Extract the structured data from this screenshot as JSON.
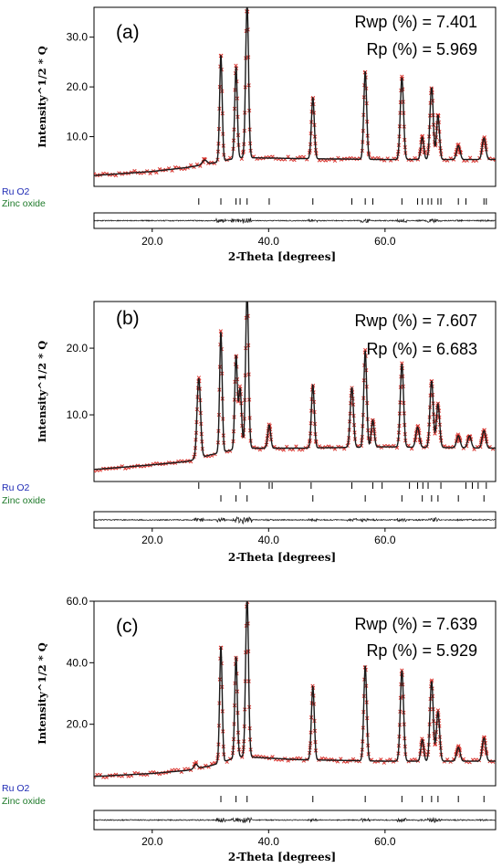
{
  "colors": {
    "background": "#ffffff",
    "observed": "#d8322c",
    "calculated": "#1a1a1a",
    "phase1_label": "#1f2bb5",
    "phase2_label": "#1e7a2a",
    "difference": "#222222"
  },
  "chart_data": [
    {
      "type": "line",
      "panel_label": "(a)",
      "rwp_text": "Rwp (%) = 7.401",
      "rp_text": "Rp  (%) = 5.969",
      "ylabel": "Intensity^1/2 * Q",
      "xlabel": "2-Theta [degrees]",
      "xlim": [
        10,
        79
      ],
      "ylim": [
        0,
        36
      ],
      "xticks": [
        "20.0",
        "40.0",
        "60.0"
      ],
      "yticks": [
        "10.0",
        "20.0",
        "30.0"
      ],
      "background": [
        [
          10,
          2.2
        ],
        [
          20,
          3.0
        ],
        [
          26,
          3.8
        ],
        [
          30,
          4.6
        ],
        [
          35,
          5.8
        ],
        [
          45,
          5.6
        ],
        [
          60,
          5.4
        ],
        [
          79,
          5.4
        ]
      ],
      "peaks": [
        [
          29,
          0.9,
          0.4
        ],
        [
          31.8,
          21.5,
          0.22
        ],
        [
          34.4,
          18.5,
          0.22
        ],
        [
          36.3,
          31,
          0.25
        ],
        [
          47.6,
          12.3,
          0.25
        ],
        [
          56.6,
          17.7,
          0.25
        ],
        [
          62.9,
          16.5,
          0.28
        ],
        [
          66.4,
          4.5,
          0.25
        ],
        [
          68.0,
          14.5,
          0.28
        ],
        [
          69.1,
          9.0,
          0.25
        ],
        [
          72.6,
          2.8,
          0.3
        ],
        [
          77.0,
          4.3,
          0.3
        ]
      ],
      "phases": [
        {
          "name": "Ru O2",
          "positions": [
            28.0,
            35.1,
            40.1,
            54.3,
            57.9,
            65.6,
            67.4,
            69.6,
            73.9,
            77.4
          ]
        },
        {
          "name": "Zinc oxide",
          "positions": [
            31.8,
            34.4,
            36.3,
            47.6,
            56.6,
            62.9,
            66.4,
            68.0,
            69.1,
            72.6,
            77.0
          ]
        }
      ]
    },
    {
      "type": "line",
      "panel_label": "(b)",
      "rwp_text": "Rwp (%) = 7.607",
      "rp_text": "Rp  (%) = 6.683",
      "ylabel": "Intensity^1/2 * Q",
      "xlabel": "2-Theta [degrees]",
      "xlim": [
        10,
        79
      ],
      "ylim": [
        0,
        27
      ],
      "xticks": [
        "20.0",
        "40.0",
        "60.0"
      ],
      "yticks": [
        "10.0",
        "20.0"
      ],
      "background": [
        [
          10,
          1.8
        ],
        [
          20,
          2.5
        ],
        [
          26,
          3.0
        ],
        [
          30,
          4.0
        ],
        [
          35,
          5.0
        ],
        [
          45,
          5.0
        ],
        [
          60,
          5.2
        ],
        [
          79,
          5.0
        ]
      ],
      "peaks": [
        [
          28.0,
          12.0,
          0.3
        ],
        [
          31.8,
          18.2,
          0.22
        ],
        [
          34.4,
          14.0,
          0.22
        ],
        [
          35.1,
          9.0,
          0.25
        ],
        [
          36.3,
          23.5,
          0.25
        ],
        [
          40.1,
          3.5,
          0.25
        ],
        [
          47.6,
          9.5,
          0.25
        ],
        [
          54.3,
          9.0,
          0.28
        ],
        [
          56.6,
          14.5,
          0.25
        ],
        [
          57.9,
          4.0,
          0.25
        ],
        [
          62.9,
          12.5,
          0.28
        ],
        [
          65.6,
          3.0,
          0.3
        ],
        [
          68.0,
          10.0,
          0.28
        ],
        [
          69.1,
          6.5,
          0.28
        ],
        [
          72.6,
          1.8,
          0.3
        ],
        [
          74.5,
          1.8,
          0.3
        ],
        [
          77.0,
          2.6,
          0.3
        ]
      ],
      "phases": [
        {
          "name": "Ru O2",
          "positions": [
            28.0,
            35.1,
            40.1,
            40.6,
            47.3,
            54.3,
            57.9,
            59.5,
            64.2,
            65.6,
            66.5,
            67.4,
            69.6,
            73.9,
            75.0,
            76.0,
            77.4
          ]
        },
        {
          "name": "Zinc oxide",
          "positions": [
            31.8,
            34.4,
            36.3,
            47.6,
            56.6,
            62.9,
            66.4,
            68.0,
            69.1,
            72.6,
            77.0
          ]
        }
      ]
    },
    {
      "type": "line",
      "panel_label": "(c)",
      "rwp_text": "Rwp (%) = 7.639",
      "rp_text": "Rp  (%) = 5.929",
      "ylabel": "Intensity^1/2 * Q",
      "xlabel": "2-Theta [degrees]",
      "xlim": [
        10,
        79
      ],
      "ylim": [
        0,
        60
      ],
      "xticks": [
        "20.0",
        "40.0",
        "60.0"
      ],
      "yticks": [
        "20.0",
        "40.0",
        "60.0"
      ],
      "background": [
        [
          10,
          3.0
        ],
        [
          20,
          4.0
        ],
        [
          26,
          5.0
        ],
        [
          30,
          6.5
        ],
        [
          35,
          9.5
        ],
        [
          45,
          8.5
        ],
        [
          60,
          8.0
        ],
        [
          79,
          8.0
        ]
      ],
      "peaks": [
        [
          27.5,
          1.5,
          0.3
        ],
        [
          31.8,
          38,
          0.22
        ],
        [
          34.4,
          33,
          0.22
        ],
        [
          36.3,
          52,
          0.25
        ],
        [
          47.6,
          24,
          0.25
        ],
        [
          56.6,
          31,
          0.25
        ],
        [
          62.9,
          29.5,
          0.28
        ],
        [
          66.4,
          7,
          0.25
        ],
        [
          68.0,
          26,
          0.28
        ],
        [
          69.1,
          16,
          0.28
        ],
        [
          72.6,
          4.5,
          0.3
        ],
        [
          77.0,
          7.5,
          0.3
        ]
      ],
      "phases": [
        {
          "name": "Ru O2",
          "positions": [
            31.8,
            34.4,
            36.3,
            47.6,
            56.6,
            62.9,
            66.4,
            68.0,
            69.1,
            72.6,
            77.0
          ]
        },
        {
          "name": "Zinc oxide",
          "positions": []
        }
      ]
    }
  ]
}
